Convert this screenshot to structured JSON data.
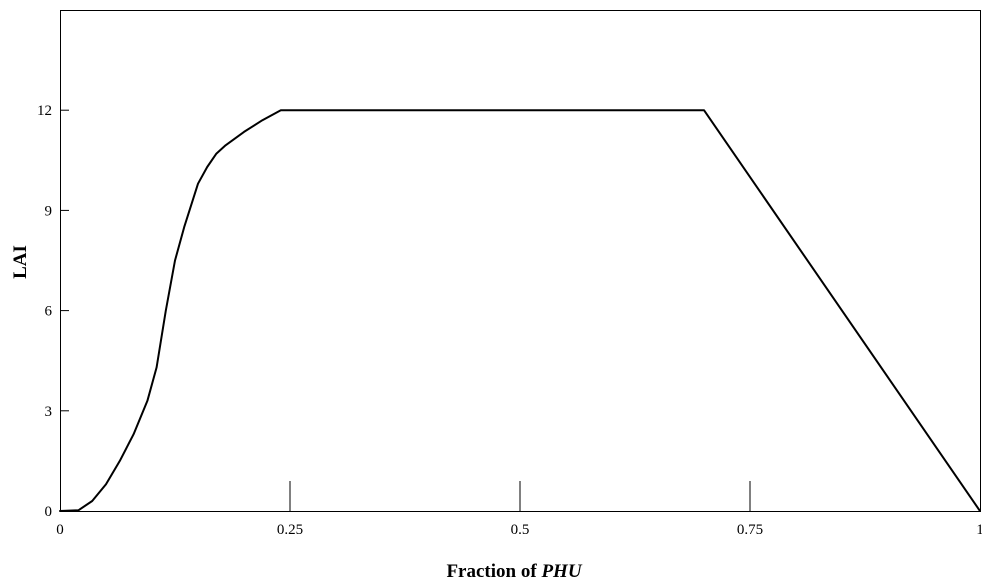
{
  "chart_data": {
    "type": "line",
    "xlabel": "Fraction of",
    "xlabel_emphasis": "PHU",
    "ylabel": "LAI",
    "xlim": [
      0,
      1
    ],
    "ylim": [
      0,
      15
    ],
    "x_ticks": [
      {
        "value": 0,
        "label": "0"
      },
      {
        "value": 0.25,
        "label": "0.25"
      },
      {
        "value": 0.5,
        "label": "0.5"
      },
      {
        "value": 0.75,
        "label": "0.75"
      },
      {
        "value": 1,
        "label": "1"
      }
    ],
    "y_ticks": [
      {
        "value": 0,
        "label": "0"
      },
      {
        "value": 3,
        "label": "3"
      },
      {
        "value": 6,
        "label": "6"
      },
      {
        "value": 9,
        "label": "9"
      },
      {
        "value": 12,
        "label": "12"
      }
    ],
    "grid": false,
    "series": [
      {
        "color": "#000000",
        "x": [
          0,
          0.02,
          0.035,
          0.05,
          0.065,
          0.08,
          0.095,
          0.105,
          0.115,
          0.125,
          0.135,
          0.15,
          0.16,
          0.17,
          0.18,
          0.2,
          0.22,
          0.24,
          0.5,
          0.7,
          1.0
        ],
        "y": [
          0,
          0.02,
          0.3,
          0.8,
          1.5,
          2.3,
          3.3,
          4.3,
          6.0,
          7.5,
          8.5,
          9.8,
          10.3,
          10.7,
          10.95,
          11.35,
          11.7,
          12,
          12,
          12,
          0
        ]
      }
    ]
  }
}
